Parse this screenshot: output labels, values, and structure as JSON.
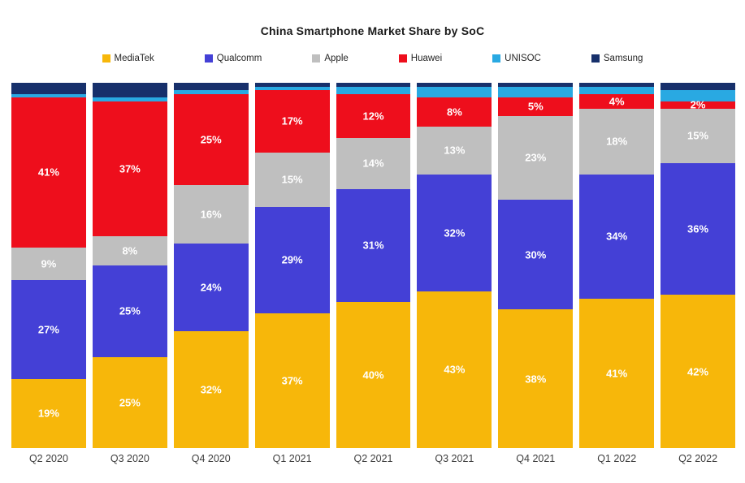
{
  "chart_data": {
    "type": "bar",
    "stacked": true,
    "title": "China Smartphone Market Share by SoC",
    "xlabel": "",
    "ylabel": "",
    "ylim": [
      0,
      100
    ],
    "grid": false,
    "legend_position": "top",
    "label_suffix": "%",
    "categories": [
      "Q2 2020",
      "Q3 2020",
      "Q4 2020",
      "Q1 2021",
      "Q2 2021",
      "Q3 2021",
      "Q4 2021",
      "Q1 2022",
      "Q2 2022"
    ],
    "series": [
      {
        "name": "MediaTek",
        "color": "#F7B70A",
        "labeled": true,
        "values": [
          19,
          25,
          32,
          37,
          40,
          43,
          38,
          41,
          42
        ]
      },
      {
        "name": "Qualcomm",
        "color": "#4440D6",
        "labeled": true,
        "values": [
          27,
          25,
          24,
          29,
          31,
          32,
          30,
          34,
          36
        ]
      },
      {
        "name": "Apple",
        "color": "#BFBFBF",
        "labeled": true,
        "values": [
          9,
          8,
          16,
          15,
          14,
          13,
          23,
          18,
          15
        ]
      },
      {
        "name": "Huawei",
        "color": "#EE0E1C",
        "labeled": true,
        "values": [
          41,
          37,
          25,
          17,
          12,
          8,
          5,
          4,
          2
        ]
      },
      {
        "name": "UNISOC",
        "color": "#29A9E2",
        "labeled": false,
        "values": [
          1,
          1,
          1,
          1,
          2,
          3,
          3,
          2,
          3
        ]
      },
      {
        "name": "Samsung",
        "color": "#17306B",
        "labeled": false,
        "values": [
          3,
          4,
          2,
          1,
          1,
          1,
          1,
          1,
          2
        ]
      }
    ]
  }
}
